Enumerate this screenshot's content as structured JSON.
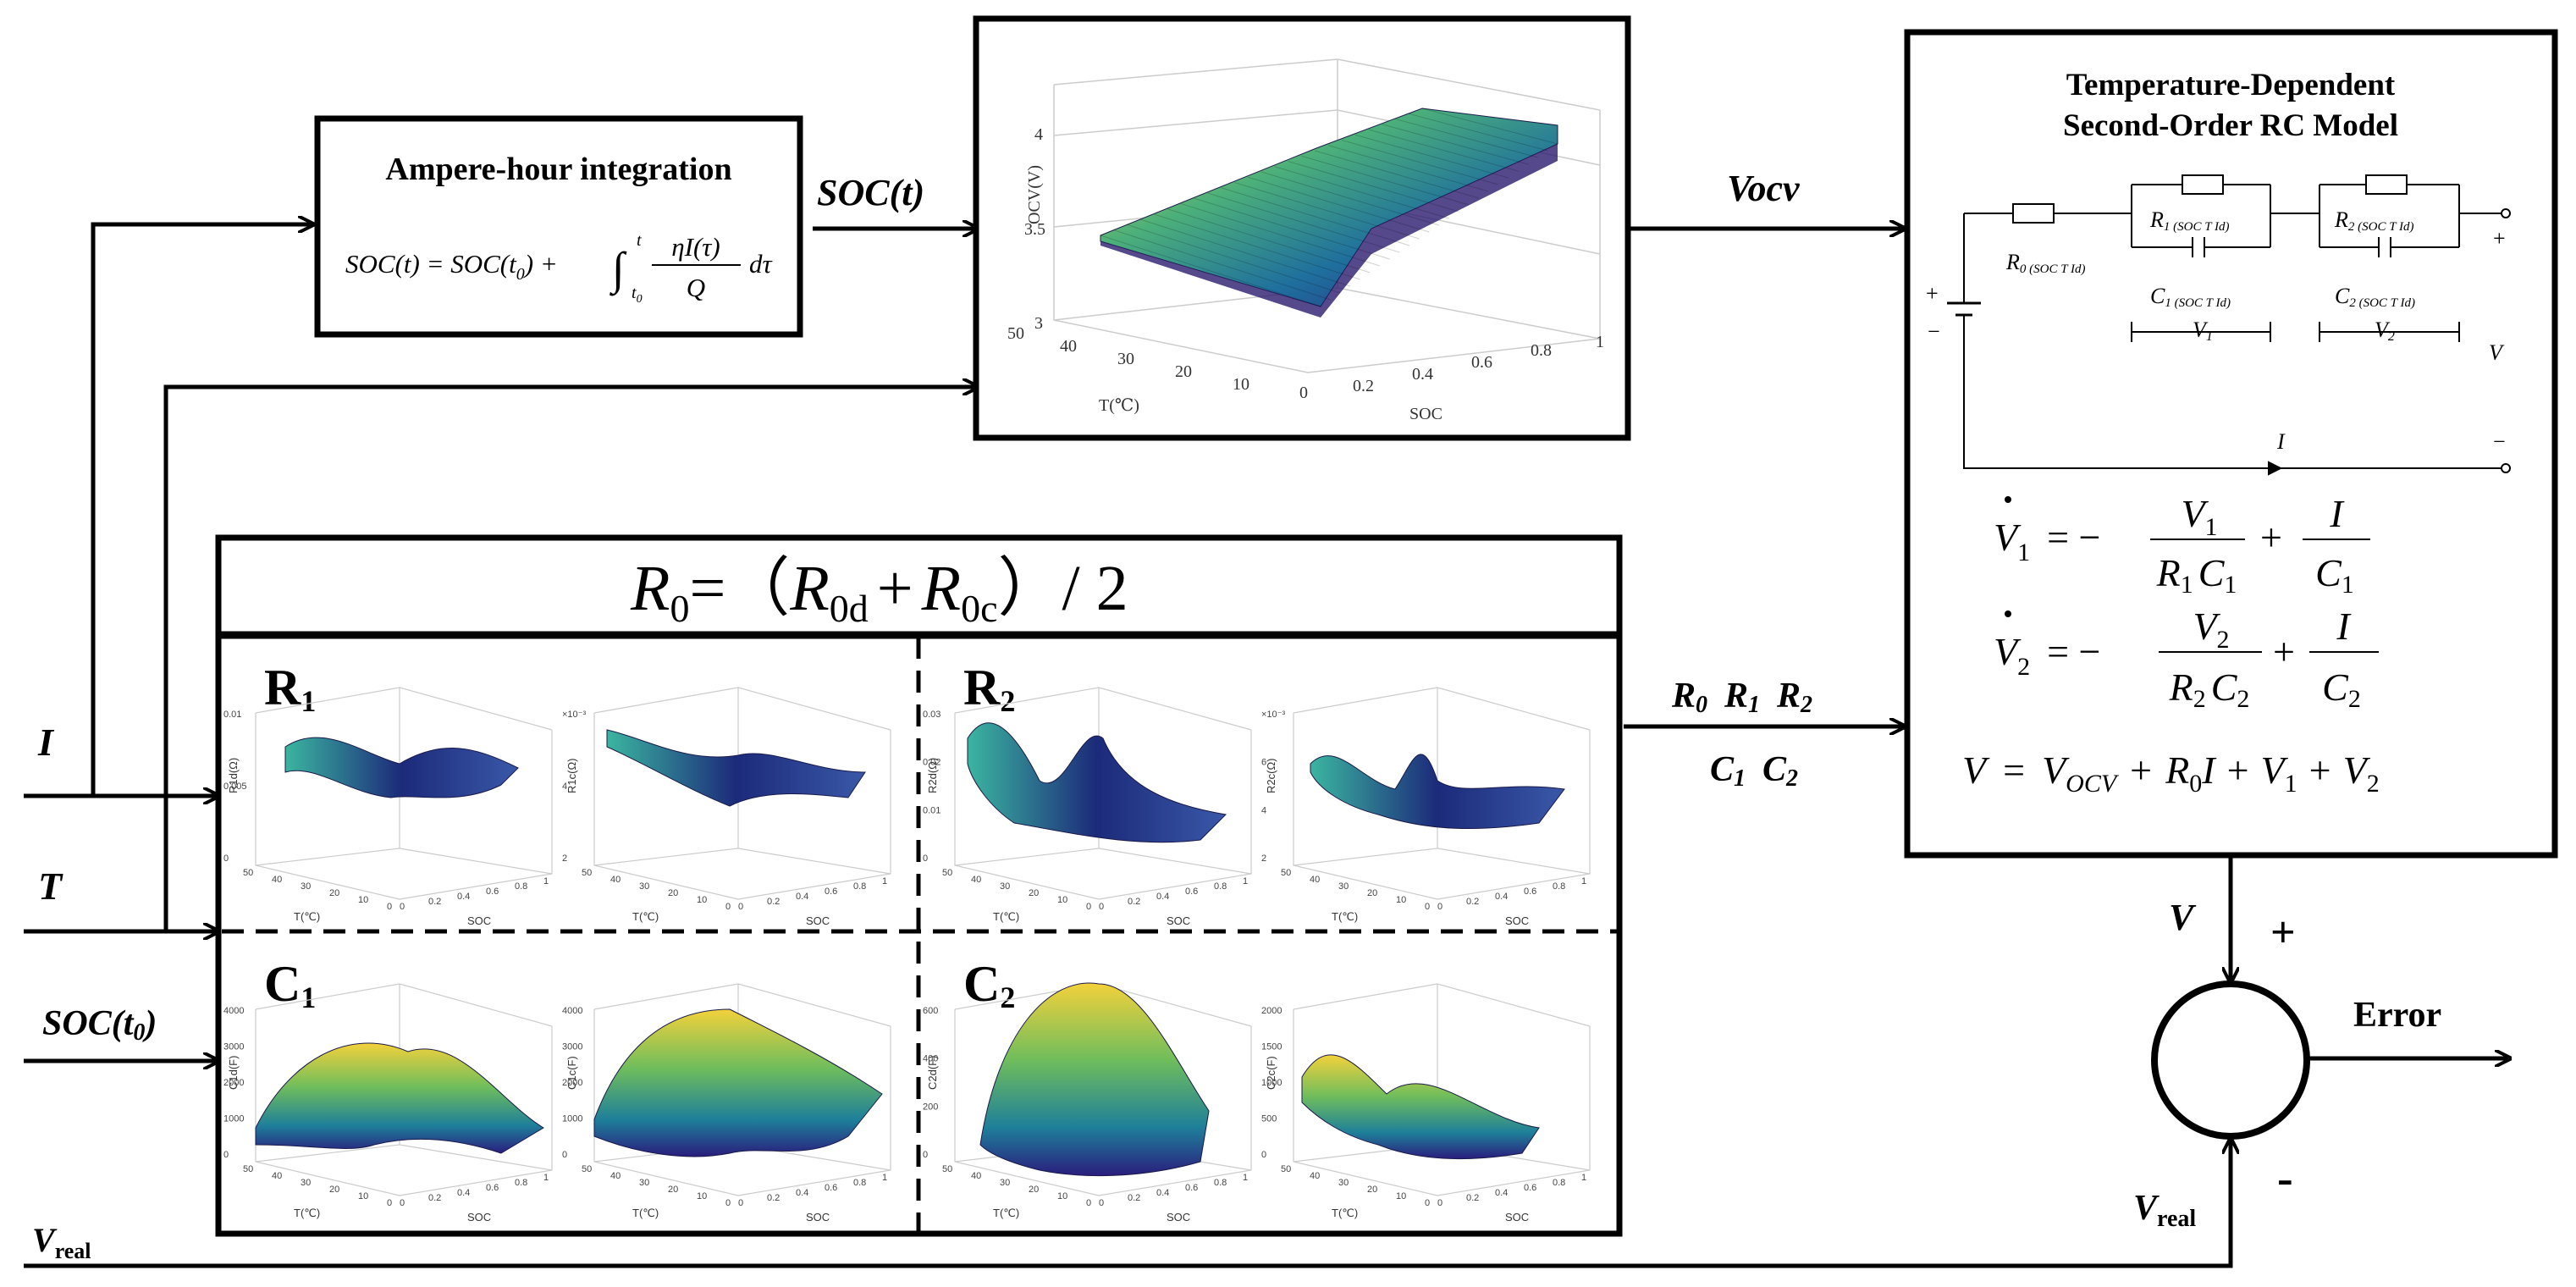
{
  "inputs": {
    "current": "I",
    "temperature": "T",
    "soc_initial": {
      "main": "SOC(t",
      "sub": "0",
      "close": ")"
    },
    "v_real": {
      "main": "V",
      "sub": "real"
    }
  },
  "ah_block": {
    "title": "Ampere-hour integration",
    "formula_lhs": "SOC(t) = SOC(t",
    "formula_sub0": "0",
    "formula_mid": ") +",
    "integral_lower": "t",
    "integral_lower_sub": "0",
    "integral_upper": "t",
    "numerator": "ηI(τ)",
    "denominator": "Q",
    "dtau": "dτ"
  },
  "soc_t_label": "SOC(t)",
  "ocv_plot": {
    "zlabel": "OCV(V)",
    "xlabel": "SOC",
    "ylabel": "T(℃)",
    "zticks": [
      "4",
      "3.5",
      "3"
    ],
    "xticks": [
      "0",
      "0.2",
      "0.4",
      "0.6",
      "0.8",
      "1"
    ],
    "yticks": [
      "50",
      "40",
      "30",
      "20",
      "10"
    ]
  },
  "vocv_label": "Vocv",
  "params_block": {
    "header": {
      "r": "R",
      "r_sub": "0",
      "eq": "=（",
      "r2": "R",
      "r2_sub": "0d",
      "plus": "+",
      "r3": "R",
      "r3_sub": "0c",
      "close": "）/ 2"
    },
    "panels": [
      {
        "title": "R",
        "sub": "1",
        "ylabels": [
          "R1d(Ω)",
          "R1c(Ω)"
        ],
        "zticks_left": [
          "0.01",
          "0.005",
          "0"
        ],
        "zticks_right": [
          "×10⁻³",
          "4",
          "2"
        ]
      },
      {
        "title": "R",
        "sub": "2",
        "ylabels": [
          "R2d(Ω)",
          "R2c(Ω)"
        ],
        "zticks_left": [
          "0.03",
          "0.02",
          "0.01",
          "0"
        ],
        "zticks_right": [
          "×10⁻³",
          "6",
          "4",
          "2"
        ]
      },
      {
        "title": "C",
        "sub": "1",
        "ylabels": [
          "C1d(F)",
          "C1c(F)"
        ],
        "zticks_left": [
          "4000",
          "3000",
          "2000",
          "1000",
          "0"
        ],
        "zticks_right": [
          "4000",
          "3000",
          "2000",
          "1000",
          "0"
        ]
      },
      {
        "title": "C",
        "sub": "2",
        "ylabels": [
          "C2d(F)",
          "C2c(F)"
        ],
        "zticks_left": [
          "600",
          "400",
          "200",
          "0"
        ],
        "zticks_right": [
          "2000",
          "1500",
          "1000",
          "500",
          "0"
        ]
      }
    ],
    "axis_x": "SOC",
    "axis_y": "T(℃)",
    "soc_ticks": [
      "0",
      "0.2",
      "0.4",
      "0.6",
      "0.8",
      "1"
    ],
    "t_ticks": [
      "50",
      "40",
      "30",
      "20",
      "10",
      "0"
    ]
  },
  "param_outputs": {
    "row1": [
      "R",
      "0",
      "R",
      "1",
      "R",
      "2"
    ],
    "row2": [
      "C",
      "1",
      "C",
      "2"
    ]
  },
  "rc_model": {
    "title_line1": "Temperature-Dependent",
    "title_line2": "Second-Order RC Model",
    "r0_label": "R",
    "r0_sub": "0 (SOC T Id)",
    "r1_label": "R",
    "r1_sub": "1 (SOC T Id)",
    "c1_label": "C",
    "c1_sub": "1 (SOC T Id)",
    "r2_label": "R",
    "r2_sub": "2 (SOC T Id)",
    "c2_label": "C",
    "c2_sub": "2 (SOC T Id)",
    "v1": "V",
    "v1_sub": "1",
    "v2": "V",
    "v2_sub": "2",
    "v_out": "V",
    "i_label": "I",
    "plus": "+",
    "minus": "−",
    "eq1": {
      "lhs": "V",
      "lhs_sub": "1",
      "eq": "=  −",
      "num": "V",
      "num_sub": "1",
      "den_r": "R",
      "den_r_sub": "1",
      "den_c": "C",
      "den_c_sub": "1",
      "plus": "+",
      "num2": "I",
      "den2": "C",
      "den2_sub": "1"
    },
    "eq2": {
      "lhs": "V",
      "lhs_sub": "2",
      "eq": "=  −",
      "num": "V",
      "num_sub": "2",
      "den_r": "R",
      "den_r_sub": "2",
      "den_c": "C",
      "den_c_sub": "2",
      "plus": "+",
      "num2": "I",
      "den2": "C",
      "den2_sub": "2"
    },
    "eq3": {
      "lhs": "V",
      "eq": "=",
      "t1": "V",
      "t1_sub": "OCV",
      "p1": "+",
      "t2": "R",
      "t2_sub": "0",
      "t2b": "I",
      "p2": "+",
      "t3": "V",
      "t3_sub": "1",
      "p3": "+",
      "t4": "V",
      "t4_sub": "2"
    }
  },
  "comparator": {
    "v_label": "V",
    "plus": "+",
    "minus": "-",
    "vreal": "V",
    "vreal_sub": "real",
    "error": "Error"
  }
}
